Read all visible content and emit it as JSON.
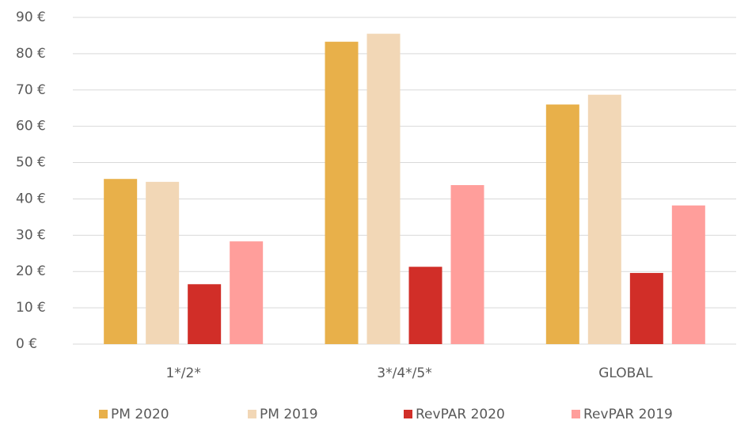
{
  "chart_data": {
    "type": "bar",
    "categories": [
      "1*/2*",
      "3*/4*/5*",
      "GLOBAL"
    ],
    "series": [
      {
        "name": "PM 2020",
        "color": "#e8b04a",
        "values": [
          45.5,
          83.3,
          66
        ]
      },
      {
        "name": "PM 2019",
        "color": "#f2d7b6",
        "values": [
          44.7,
          85.5,
          68.7
        ]
      },
      {
        "name": "RevPAR 2020",
        "color": "#d12e28",
        "values": [
          16.5,
          21.3,
          19.6
        ]
      },
      {
        "name": "RevPAR 2019",
        "color": "#ff9e9b",
        "values": [
          28.3,
          43.8,
          38.2
        ]
      }
    ],
    "ylim": [
      0,
      90
    ],
    "yticks": [
      {
        "value": 0,
        "label": "0 €"
      },
      {
        "value": 10,
        "label": "10 €"
      },
      {
        "value": 20,
        "label": "20 €"
      },
      {
        "value": 30,
        "label": "30 €"
      },
      {
        "value": 40,
        "label": "40 €"
      },
      {
        "value": 50,
        "label": "50 €"
      },
      {
        "value": 60,
        "label": "60 €"
      },
      {
        "value": 70,
        "label": "70 €"
      },
      {
        "value": 80,
        "label": "80 €"
      },
      {
        "value": 90,
        "label": "90 €"
      }
    ],
    "grid": true,
    "legend": "bottom"
  }
}
